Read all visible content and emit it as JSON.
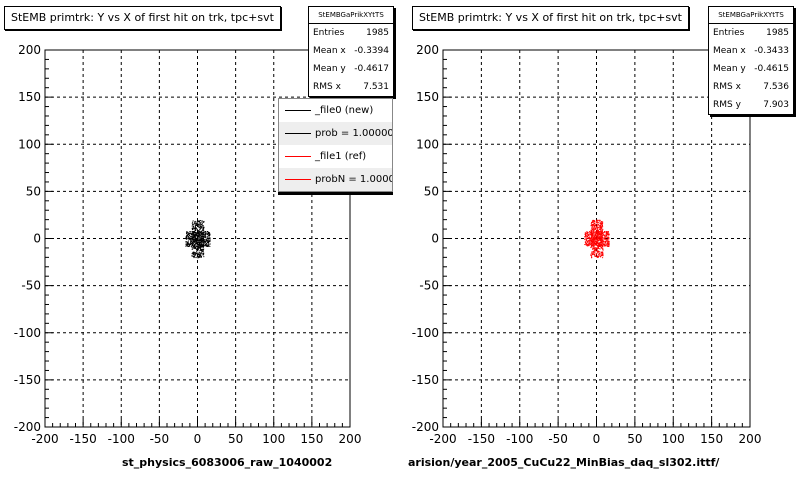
{
  "panels": [
    {
      "title": "StEMB primtrk: Y vs X of first hit on trk, tpc+svt",
      "stats": {
        "header": "StEMBGaPrikXYtTS",
        "rows": [
          {
            "label": "Entries",
            "value": "1985"
          },
          {
            "label": "Mean x",
            "value": "-0.3394"
          },
          {
            "label": "Mean y",
            "value": "-0.4617"
          },
          {
            "label": "RMS x",
            "value": "7.531"
          }
        ]
      },
      "legend": [
        {
          "label": "_file0 (new)",
          "color": "#000000"
        },
        {
          "label": "prob = 1.000000",
          "color": "#000000"
        },
        {
          "label": "_file1 (ref)",
          "color": "#ff0000"
        },
        {
          "label": "probN = 1.000000",
          "color": "#ff0000"
        }
      ],
      "xtitle": "st_physics_6083006_raw_1040002",
      "marker_color": "#000000"
    },
    {
      "title": "StEMB primtrk: Y vs X of first hit on trk, tpc+svt",
      "stats": {
        "header": "StEMBGaPrikXYtTS",
        "rows": [
          {
            "label": "Entries",
            "value": "1985"
          },
          {
            "label": "Mean x",
            "value": "-0.3433"
          },
          {
            "label": "Mean y",
            "value": "-0.4615"
          },
          {
            "label": "RMS x",
            "value": "7.536"
          },
          {
            "label": "RMS y",
            "value": "7.903"
          }
        ]
      },
      "xtitle": "arision/year_2005_CuCu22_MinBias_daq_sl302.ittf/",
      "marker_color": "#ff0000"
    }
  ],
  "footer_note": "",
  "chart_data": [
    {
      "type": "scatter",
      "title": "StEMB primtrk: Y vs X of first hit on trk, tpc+svt",
      "xlabel": "st_physics_6083006_raw_1040002",
      "ylabel": "",
      "xlim": [
        -200,
        200
      ],
      "ylim": [
        -200,
        200
      ],
      "xticks": [
        "-200",
        "-150",
        "-100",
        "-50",
        "0",
        "50",
        "100",
        "150",
        "200"
      ],
      "yticks": [
        "200",
        "150",
        "100",
        "50",
        "0",
        "-50",
        "-100",
        "-150",
        "-200"
      ],
      "grid": true,
      "cluster": {
        "x_core": [
          -8,
          8
        ],
        "y_core": [
          -20,
          20
        ],
        "x_wide": [
          -16,
          16
        ],
        "y_wide": [
          -8,
          8
        ],
        "entries": 1985
      },
      "color": "#000000"
    },
    {
      "type": "scatter",
      "title": "StEMB primtrk: Y vs X of first hit on trk, tpc+svt",
      "xlabel": "arision/year_2005_CuCu22_MinBias_daq_sl302.ittf/",
      "ylabel": "",
      "xlim": [
        -200,
        200
      ],
      "ylim": [
        -200,
        200
      ],
      "xticks": [
        "-200",
        "-150",
        "-100",
        "-50",
        "0",
        "50",
        "100",
        "150",
        "200"
      ],
      "yticks": [
        "200",
        "150",
        "100",
        "50",
        "0",
        "-50",
        "-100",
        "-150",
        "-200"
      ],
      "grid": true,
      "cluster": {
        "x_core": [
          -8,
          8
        ],
        "y_core": [
          -20,
          20
        ],
        "x_wide": [
          -16,
          16
        ],
        "y_wide": [
          -8,
          8
        ],
        "entries": 1985
      },
      "color": "#ff0000"
    }
  ]
}
